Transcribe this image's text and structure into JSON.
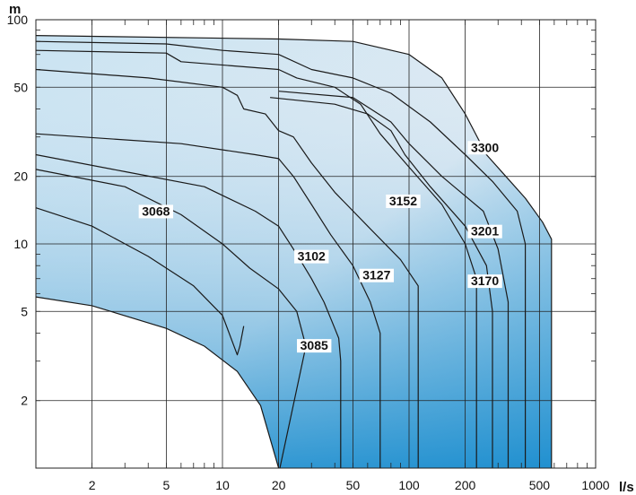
{
  "chart_data": {
    "type": "area",
    "title": "",
    "xlabel": "l/s",
    "ylabel": "m",
    "xscale": "log",
    "yscale": "log",
    "xlim": [
      1,
      1000
    ],
    "ylim": [
      1,
      100
    ],
    "x_ticks": [
      {
        "value": 2,
        "label": "2"
      },
      {
        "value": 5,
        "label": "5"
      },
      {
        "value": 10,
        "label": "10"
      },
      {
        "value": 20,
        "label": "20"
      },
      {
        "value": 50,
        "label": "50"
      },
      {
        "value": 100,
        "label": "100"
      },
      {
        "value": 200,
        "label": "200"
      },
      {
        "value": 500,
        "label": "500"
      },
      {
        "value": 1000,
        "label": "1000"
      }
    ],
    "y_ticks": [
      {
        "value": 2,
        "label": "2"
      },
      {
        "value": 5,
        "label": "5"
      },
      {
        "value": 10,
        "label": "10"
      },
      {
        "value": 20,
        "label": "20"
      },
      {
        "value": 50,
        "label": "50"
      },
      {
        "value": 100,
        "label": "100"
      }
    ],
    "grid": true,
    "colors": {
      "fill_light": "#e6eef5",
      "fill_mid": "#b9dcee",
      "fill_deep": "#1f8fcf",
      "curve": "#1a1a1a",
      "grid": "#222222"
    },
    "envelope_lower": [
      [
        1,
        5.8
      ],
      [
        2,
        5.3
      ],
      [
        5,
        4.2
      ],
      [
        8,
        3.5
      ],
      [
        12,
        2.7
      ],
      [
        16,
        1.9
      ],
      [
        20,
        1.0
      ]
    ],
    "series": [
      {
        "name": "3068",
        "points": [
          [
            1,
            14.5
          ],
          [
            2,
            12.0
          ],
          [
            4,
            8.8
          ],
          [
            7,
            6.5
          ],
          [
            10,
            4.8
          ],
          [
            12,
            3.2
          ],
          [
            12.4,
            3.5
          ],
          [
            13,
            4.3
          ]
        ]
      },
      {
        "name": "3085",
        "points": [
          [
            1,
            21.5
          ],
          [
            3,
            18.0
          ],
          [
            6,
            13.5
          ],
          [
            10,
            10.0
          ],
          [
            14,
            7.8
          ],
          [
            20,
            6.3
          ],
          [
            25,
            5.0
          ],
          [
            28,
            3.5
          ],
          [
            20.3,
            1.0
          ]
        ]
      },
      {
        "name": "3102",
        "points": [
          [
            1,
            25.0
          ],
          [
            3,
            21.0
          ],
          [
            8,
            18.0
          ],
          [
            15,
            14.0
          ],
          [
            20,
            12.0
          ],
          [
            25,
            9.0
          ],
          [
            30,
            7.0
          ],
          [
            35,
            5.5
          ],
          [
            40,
            4.2
          ],
          [
            42,
            3.8
          ],
          [
            43,
            3.0
          ],
          [
            43,
            1.0
          ]
        ]
      },
      {
        "name": "3127",
        "points": [
          [
            1,
            31.0
          ],
          [
            6,
            28.0
          ],
          [
            15,
            25.0
          ],
          [
            20,
            24.0
          ],
          [
            24,
            20.0
          ],
          [
            30,
            15.0
          ],
          [
            38,
            11.0
          ],
          [
            50,
            8.0
          ],
          [
            62,
            5.5
          ],
          [
            70,
            4.0
          ],
          [
            70,
            1.0
          ]
        ]
      },
      {
        "name": "3152",
        "points": [
          [
            1,
            60.0
          ],
          [
            4,
            55.0
          ],
          [
            10,
            50.0
          ],
          [
            12,
            46.0
          ],
          [
            13,
            40.0
          ],
          [
            17,
            38.0
          ],
          [
            20,
            32.0
          ],
          [
            24,
            30.0
          ],
          [
            30,
            23.0
          ],
          [
            40,
            17.0
          ],
          [
            60,
            12.0
          ],
          [
            90,
            8.5
          ],
          [
            112,
            6.5
          ],
          [
            112,
            1.0
          ]
        ]
      },
      {
        "name": "3170",
        "points": [
          [
            18,
            45.0
          ],
          [
            40,
            42.0
          ],
          [
            60,
            38.0
          ],
          [
            80,
            32.0
          ],
          [
            95,
            25.0
          ],
          [
            130,
            18.0
          ],
          [
            200,
            12.0
          ],
          [
            260,
            8.0
          ],
          [
            280,
            5.0
          ],
          [
            280,
            1.0
          ]
        ]
      },
      {
        "name": "3201",
        "points": [
          [
            20,
            48.0
          ],
          [
            50,
            45.0
          ],
          [
            80,
            35.0
          ],
          [
            100,
            28.0
          ],
          [
            150,
            20.0
          ],
          [
            250,
            14.0
          ],
          [
            300,
            9.5
          ],
          [
            340,
            5.5
          ],
          [
            340,
            1.0
          ]
        ]
      },
      {
        "name": "3300",
        "points": [
          [
            1,
            85.0
          ],
          [
            20,
            82.0
          ],
          [
            50,
            80.0
          ],
          [
            100,
            70.0
          ],
          [
            150,
            55.0
          ],
          [
            200,
            38.0
          ],
          [
            260,
            25.0
          ],
          [
            330,
            20.0
          ],
          [
            420,
            16.0
          ],
          [
            520,
            12.5
          ],
          [
            580,
            10.5
          ],
          [
            580,
            1.0
          ]
        ]
      }
    ],
    "extra_curves": [
      {
        "points": [
          [
            1,
            80.0
          ],
          [
            5,
            78.0
          ],
          [
            10,
            73.0
          ],
          [
            20,
            70.0
          ],
          [
            30,
            60.0
          ],
          [
            50,
            55.0
          ],
          [
            80,
            47.0
          ],
          [
            130,
            35.0
          ],
          [
            200,
            25.0
          ],
          [
            280,
            19.0
          ],
          [
            380,
            14.0
          ],
          [
            420,
            10.0
          ],
          [
            420,
            1.0
          ]
        ]
      },
      {
        "points": [
          [
            1,
            73.0
          ],
          [
            5,
            71.0
          ],
          [
            6,
            65.0
          ],
          [
            20,
            60.0
          ],
          [
            25,
            55.0
          ],
          [
            40,
            50.0
          ],
          [
            55,
            42.0
          ],
          [
            70,
            31.0
          ],
          [
            100,
            22.0
          ],
          [
            150,
            15.0
          ],
          [
            200,
            10.0
          ],
          [
            230,
            7.0
          ],
          [
            230,
            1.0
          ]
        ]
      }
    ],
    "labels": [
      {
        "text": "3300",
        "at": [
          255,
          26.0
        ]
      },
      {
        "text": "3201",
        "at": [
          255,
          11.0
        ]
      },
      {
        "text": "3170",
        "at": [
          255,
          6.6
        ]
      },
      {
        "text": "3152",
        "at": [
          93,
          15.0
        ]
      },
      {
        "text": "3127",
        "at": [
          67,
          7.0
        ]
      },
      {
        "text": "3102",
        "at": [
          30,
          8.5
        ]
      },
      {
        "text": "3085",
        "at": [
          31,
          3.4
        ]
      },
      {
        "text": "3068",
        "at": [
          4.4,
          13.5
        ]
      }
    ]
  }
}
